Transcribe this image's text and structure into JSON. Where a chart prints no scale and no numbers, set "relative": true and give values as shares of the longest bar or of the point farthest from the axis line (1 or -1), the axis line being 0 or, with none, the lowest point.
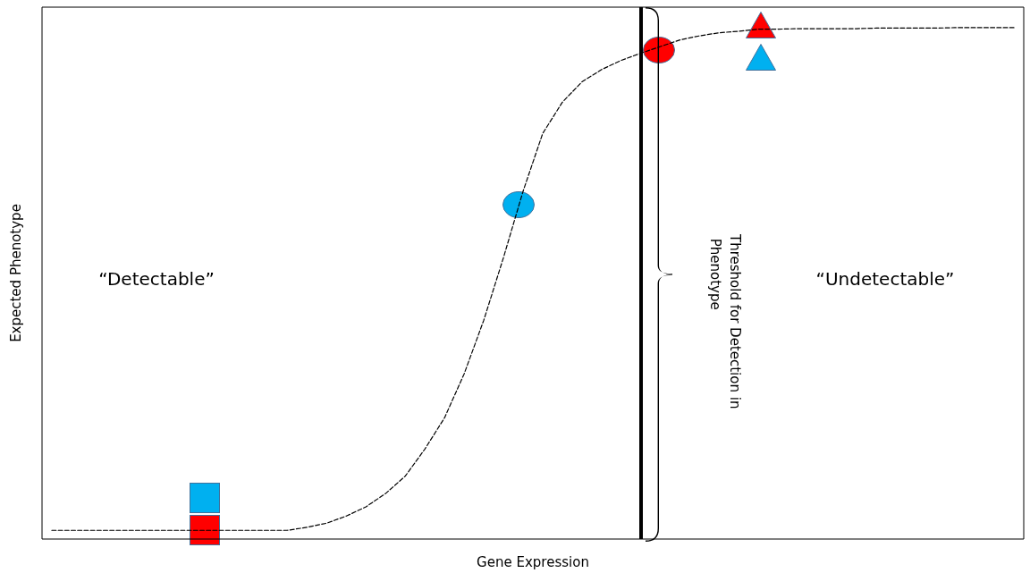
{
  "chart_data": {
    "type": "line",
    "relative": true,
    "xlabel": "Gene Expression",
    "ylabel": "Expected Phenotype",
    "categories": [
      null,
      null,
      null,
      null,
      null,
      null,
      null,
      null,
      null,
      null,
      null,
      null,
      null,
      null,
      null,
      null,
      null,
      null,
      null,
      null,
      null,
      null,
      null,
      null,
      null,
      null,
      null,
      null,
      null,
      null,
      null,
      null,
      null,
      null,
      null,
      null,
      null,
      null,
      null,
      null,
      null,
      null,
      null,
      null,
      null,
      null,
      null,
      null,
      null,
      null
    ],
    "series": [
      {
        "color": "#000000",
        "line_style": "dashed",
        "marker": "none",
        "values": [
          0.017,
          0.017,
          0.017,
          0.017,
          0.017,
          0.017,
          0.017,
          0.017,
          0.017,
          0.017,
          0.017,
          0.017,
          0.017,
          0.023,
          0.031,
          0.045,
          0.063,
          0.089,
          0.123,
          0.176,
          0.237,
          0.323,
          0.428,
          0.55,
          0.68,
          0.793,
          0.854,
          0.894,
          0.918,
          0.936,
          0.95,
          0.963,
          0.976,
          0.984,
          0.99,
          0.993,
          0.997,
          0.997,
          0.998,
          0.998,
          0.998,
          0.998,
          0.999,
          0.999,
          0.999,
          0.999,
          1,
          1,
          1,
          1
        ]
      }
    ],
    "annotations": [
      "“Detectable”",
      "“Undetectable”",
      "Threshold for Detection in Phenotype"
    ],
    "grid": false
  }
}
